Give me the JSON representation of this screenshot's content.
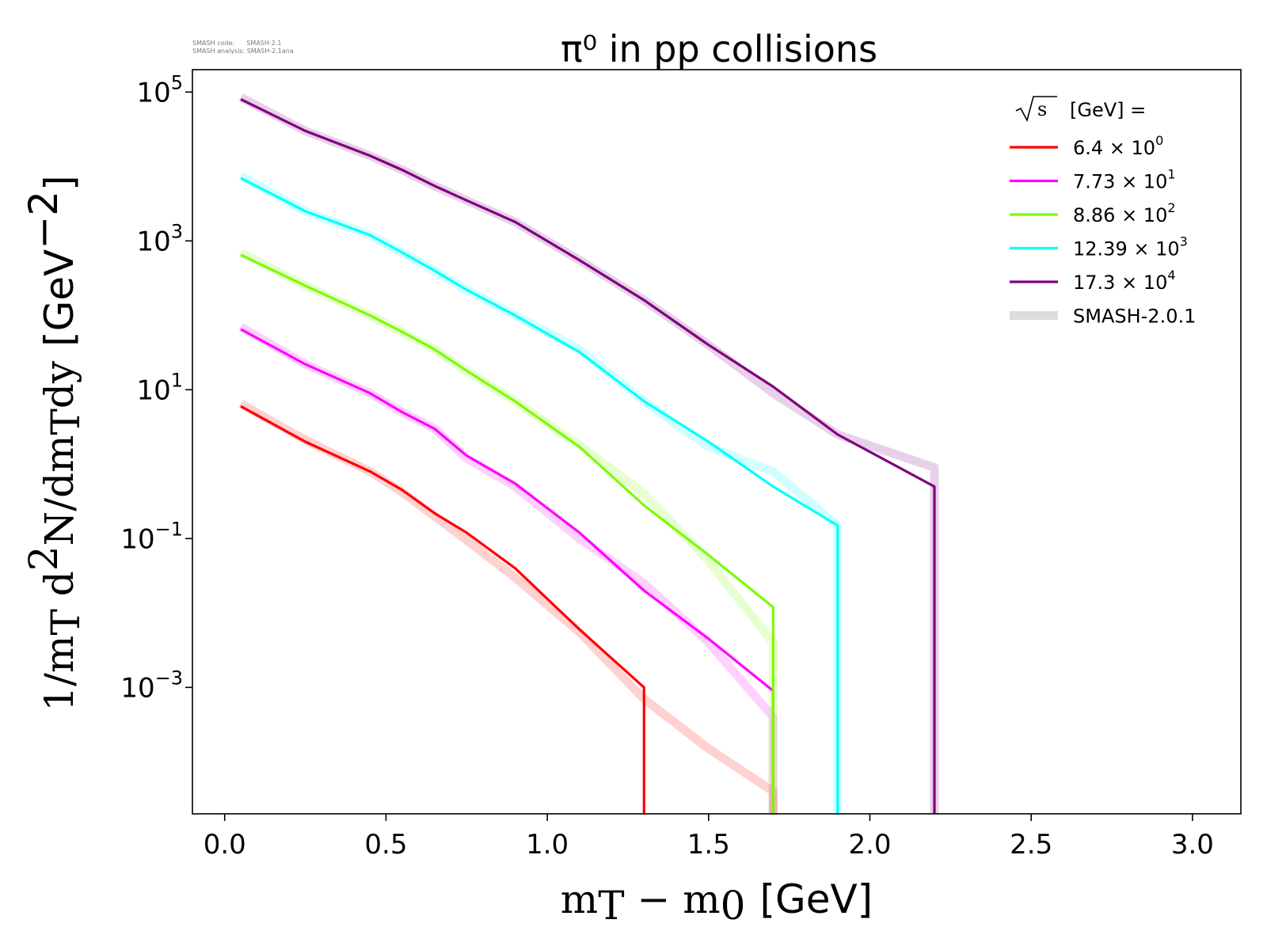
{
  "watermark": {
    "line1": "SMASH code:      SMASH-2.1",
    "line2": "SMASH analysis: SMASH-2.1ana"
  },
  "chart_data": {
    "type": "line",
    "title": "π⁰ in pp collisions",
    "xlabel": {
      "main": "m",
      "sub": "T",
      "mid": " − m",
      "sub2": "0",
      "unit": "[GeV]"
    },
    "ylabel": {
      "pre": "1/m",
      "sub": "T",
      "mid": " d",
      "sup": "2",
      "post": "N/dm",
      "sub2": "T",
      "post2": "dy",
      "unit": "[GeV",
      "unit_sup": "−2",
      "unit_end": "]"
    },
    "xlim": [
      -0.1,
      3.15
    ],
    "ylim": [
      2e-05,
      200000
    ],
    "yscale": "log",
    "x_ticks": [
      "0.0",
      "0.5",
      "1.0",
      "1.5",
      "2.0",
      "2.5",
      "3.0"
    ],
    "y_ticks": [
      {
        "base": "10",
        "exp": "5"
      },
      {
        "base": "10",
        "exp": "3"
      },
      {
        "base": "10",
        "exp": "1"
      },
      {
        "base": "10",
        "exp": "−1"
      },
      {
        "base": "10",
        "exp": "−3"
      }
    ],
    "legend": {
      "placement": "top-right",
      "title_symbol": "√s",
      "title_text": "[GeV] =",
      "entries": [
        {
          "mant": "6.4",
          "times": "×",
          "base": "10",
          "exp": "0",
          "color": "#ff0000"
        },
        {
          "mant": "7.73",
          "times": "×",
          "base": "10",
          "exp": "1",
          "color": "#ff00ff"
        },
        {
          "mant": "8.86",
          "times": "×",
          "base": "10",
          "exp": "2",
          "color": "#7cfc00"
        },
        {
          "mant": "12.39",
          "times": "×",
          "base": "10",
          "exp": "3",
          "color": "#00ffff"
        },
        {
          "mant": "17.3",
          "times": "×",
          "base": "10",
          "exp": "4",
          "color": "#800080"
        }
      ],
      "reference_label": "SMASH-2.0.1",
      "reference_color": "#dddddd"
    },
    "series": [
      {
        "color": "#ff0000",
        "x": [
          0.05,
          0.25,
          0.45,
          0.55,
          0.65,
          0.75,
          0.9,
          1.1,
          1.3,
          1.3,
          1.3
        ],
        "y": [
          6,
          2,
          0.8,
          0.45,
          0.22,
          0.12,
          0.04,
          0.006,
          0.001,
          0.0001,
          2e-05
        ],
        "ref_x": [
          0.05,
          0.25,
          0.45,
          0.55,
          0.65,
          0.75,
          0.9,
          1.1,
          1.3,
          1.5,
          1.7,
          1.7
        ],
        "ref_y": [
          6.5,
          2.1,
          0.8,
          0.42,
          0.2,
          0.095,
          0.03,
          0.0055,
          0.0007,
          0.00015,
          4e-05,
          2e-05
        ]
      },
      {
        "color": "#ff00ff",
        "x": [
          0.05,
          0.25,
          0.45,
          0.55,
          0.65,
          0.75,
          0.9,
          1.1,
          1.3,
          1.5,
          1.7,
          1.7,
          1.7
        ],
        "y": [
          65,
          22,
          9,
          5,
          3,
          1.3,
          0.55,
          0.12,
          0.02,
          0.0045,
          0.0009,
          0.0001,
          2e-05
        ],
        "ref_x": [
          0.05,
          0.25,
          0.45,
          0.55,
          0.65,
          0.75,
          0.9,
          1.1,
          1.3,
          1.5,
          1.7,
          1.7
        ],
        "ref_y": [
          70,
          22,
          9,
          5,
          3,
          1.2,
          0.5,
          0.1,
          0.025,
          0.004,
          0.0004,
          2e-05
        ]
      },
      {
        "color": "#7cfc00",
        "x": [
          0.05,
          0.25,
          0.45,
          0.55,
          0.65,
          0.75,
          0.9,
          1.1,
          1.3,
          1.5,
          1.7,
          1.7,
          1.7
        ],
        "y": [
          650,
          250,
          100,
          60,
          35,
          18,
          7,
          1.7,
          0.28,
          0.06,
          0.012,
          0.0002,
          2e-05
        ],
        "ref_x": [
          0.05,
          0.25,
          0.45,
          0.55,
          0.65,
          0.75,
          0.9,
          1.1,
          1.3,
          1.5,
          1.7,
          1.7
        ],
        "ref_y": [
          700,
          250,
          100,
          60,
          35,
          18,
          7,
          1.8,
          0.4,
          0.05,
          0.004,
          2e-05
        ]
      },
      {
        "color": "#00ffff",
        "x": [
          0.05,
          0.25,
          0.45,
          0.55,
          0.65,
          0.75,
          0.9,
          1.1,
          1.3,
          1.5,
          1.7,
          1.9,
          1.9
        ],
        "y": [
          7000,
          2500,
          1200,
          700,
          400,
          220,
          100,
          32,
          7,
          2,
          0.5,
          0.15,
          2e-05
        ],
        "ref_x": [
          0.05,
          0.25,
          0.45,
          0.55,
          0.65,
          0.75,
          0.9,
          1.1,
          1.3,
          1.5,
          1.7,
          1.9,
          1.9
        ],
        "ref_y": [
          7500,
          2500,
          1200,
          700,
          400,
          220,
          100,
          35,
          7,
          1.7,
          0.8,
          0.15,
          2e-05
        ]
      },
      {
        "color": "#800080",
        "x": [
          0.05,
          0.25,
          0.45,
          0.55,
          0.65,
          0.75,
          0.9,
          1.1,
          1.3,
          1.5,
          1.7,
          1.9,
          2.2,
          2.2
        ],
        "y": [
          80000,
          30000,
          14000,
          9000,
          5500,
          3500,
          1800,
          550,
          160,
          40,
          11,
          2.5,
          0.5,
          2e-05
        ],
        "ref_x": [
          0.05,
          0.25,
          0.45,
          0.55,
          0.65,
          0.75,
          0.9,
          1.1,
          1.3,
          1.5,
          1.7,
          1.9,
          2.2,
          2.2
        ],
        "ref_y": [
          85000,
          30000,
          14000,
          9000,
          5500,
          3500,
          1800,
          550,
          160,
          40,
          9,
          2.5,
          0.9,
          2e-05
        ]
      }
    ]
  }
}
